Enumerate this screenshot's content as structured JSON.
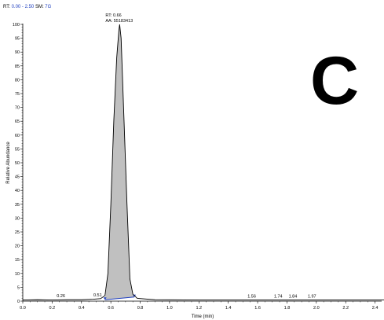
{
  "header": {
    "rt_label": "RT:",
    "rt_range": "0.00 - 2.50",
    "sm_label": "SM:",
    "sm_value": "7G"
  },
  "panel_letter": "C",
  "chart_data": {
    "type": "line",
    "title": "",
    "xlabel": "Time (min)",
    "ylabel": "Relative Abundance",
    "xlim": [
      0.0,
      2.5
    ],
    "ylim": [
      0,
      100
    ],
    "x_ticks": [
      0.0,
      0.2,
      0.4,
      0.6,
      0.8,
      1.0,
      1.2,
      1.4,
      1.6,
      1.8,
      2.0,
      2.2,
      2.4
    ],
    "x_tick_labels": [
      "0.0",
      "0.2",
      "0.4",
      "0.6",
      "0.8",
      "1.0",
      "1.2",
      "1.4",
      "1.6",
      "1.8",
      "2.0",
      "2.2",
      "2.4"
    ],
    "y_ticks": [
      0,
      5,
      10,
      15,
      20,
      25,
      30,
      35,
      40,
      45,
      50,
      55,
      60,
      65,
      70,
      75,
      80,
      85,
      90,
      95,
      100
    ],
    "y_tick_labels": [
      "0",
      "5",
      "10",
      "15",
      "20",
      "25",
      "30",
      "35",
      "40",
      "45",
      "50",
      "55",
      "60",
      "65",
      "70",
      "75",
      "80",
      "85",
      "90",
      "95",
      "100"
    ],
    "series": [
      {
        "x": [
          0.0,
          0.1,
          0.2,
          0.3,
          0.4,
          0.48,
          0.53,
          0.56,
          0.58,
          0.6,
          0.62,
          0.64,
          0.655,
          0.66,
          0.67,
          0.69,
          0.71,
          0.73,
          0.75,
          0.78,
          0.9,
          1.2,
          1.5,
          1.8,
          2.1,
          2.4,
          2.5
        ],
        "y": [
          0.4,
          0.5,
          0.4,
          0.5,
          0.5,
          0.7,
          0.9,
          2.0,
          10.0,
          35.0,
          65.0,
          88.0,
          98.0,
          100.0,
          95.0,
          65.0,
          35.0,
          8.0,
          2.5,
          1.0,
          0.5,
          0.4,
          0.4,
          0.4,
          0.4,
          0.4,
          0.4
        ]
      }
    ],
    "integrated_peak": {
      "start_x": 0.56,
      "end_x": 0.76,
      "start_y": 0.5,
      "end_y": 1.5,
      "fill": "#c0c0c0",
      "baseline_color": "#1f3fbf"
    },
    "annotations": [
      {
        "x": 0.66,
        "y": 100,
        "lines": [
          "RT: 0.66",
          "AA: 55183413"
        ]
      },
      {
        "x": 0.26,
        "y": 0.5,
        "lines": [
          "0.26"
        ]
      },
      {
        "x": 0.51,
        "y": 0.9,
        "lines": [
          "0.51"
        ]
      },
      {
        "x": 1.56,
        "y": 0.4,
        "lines": [
          "1.56"
        ]
      },
      {
        "x": 1.74,
        "y": 0.4,
        "lines": [
          "1.74"
        ]
      },
      {
        "x": 1.84,
        "y": 0.4,
        "lines": [
          "1.84"
        ]
      },
      {
        "x": 1.97,
        "y": 0.4,
        "lines": [
          "1.97"
        ]
      }
    ],
    "grid": false,
    "legend": "none"
  }
}
